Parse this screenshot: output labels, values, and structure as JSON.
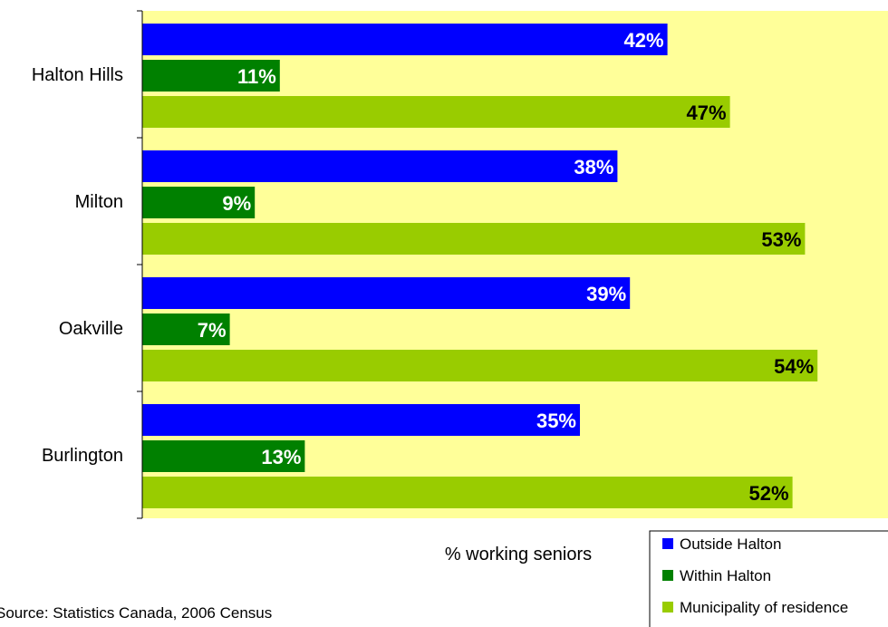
{
  "chart_data": {
    "type": "bar",
    "orientation": "horizontal",
    "categories": [
      "Halton Hills",
      "Milton",
      "Oakville",
      "Burlington"
    ],
    "series": [
      {
        "name": "Outside Halton",
        "values": [
          42,
          38,
          39,
          35
        ],
        "color": "#0000ff",
        "label_color": "#ffffff"
      },
      {
        "name": "Within Halton",
        "values": [
          11,
          9,
          7,
          13
        ],
        "color": "#008000",
        "label_color": "#ffffff"
      },
      {
        "name": "Municipality of residence",
        "values": [
          47,
          53,
          54,
          52
        ],
        "color": "#99cc00",
        "label_color": "#000000"
      }
    ],
    "value_suffix": "%",
    "xlabel": "% working seniors",
    "xlim": [
      0,
      60
    ],
    "plot_background": "#ffff99",
    "grid": false,
    "legend_position": "bottom-right"
  },
  "source_note": "Source: Statistics Canada, 2006 Census"
}
